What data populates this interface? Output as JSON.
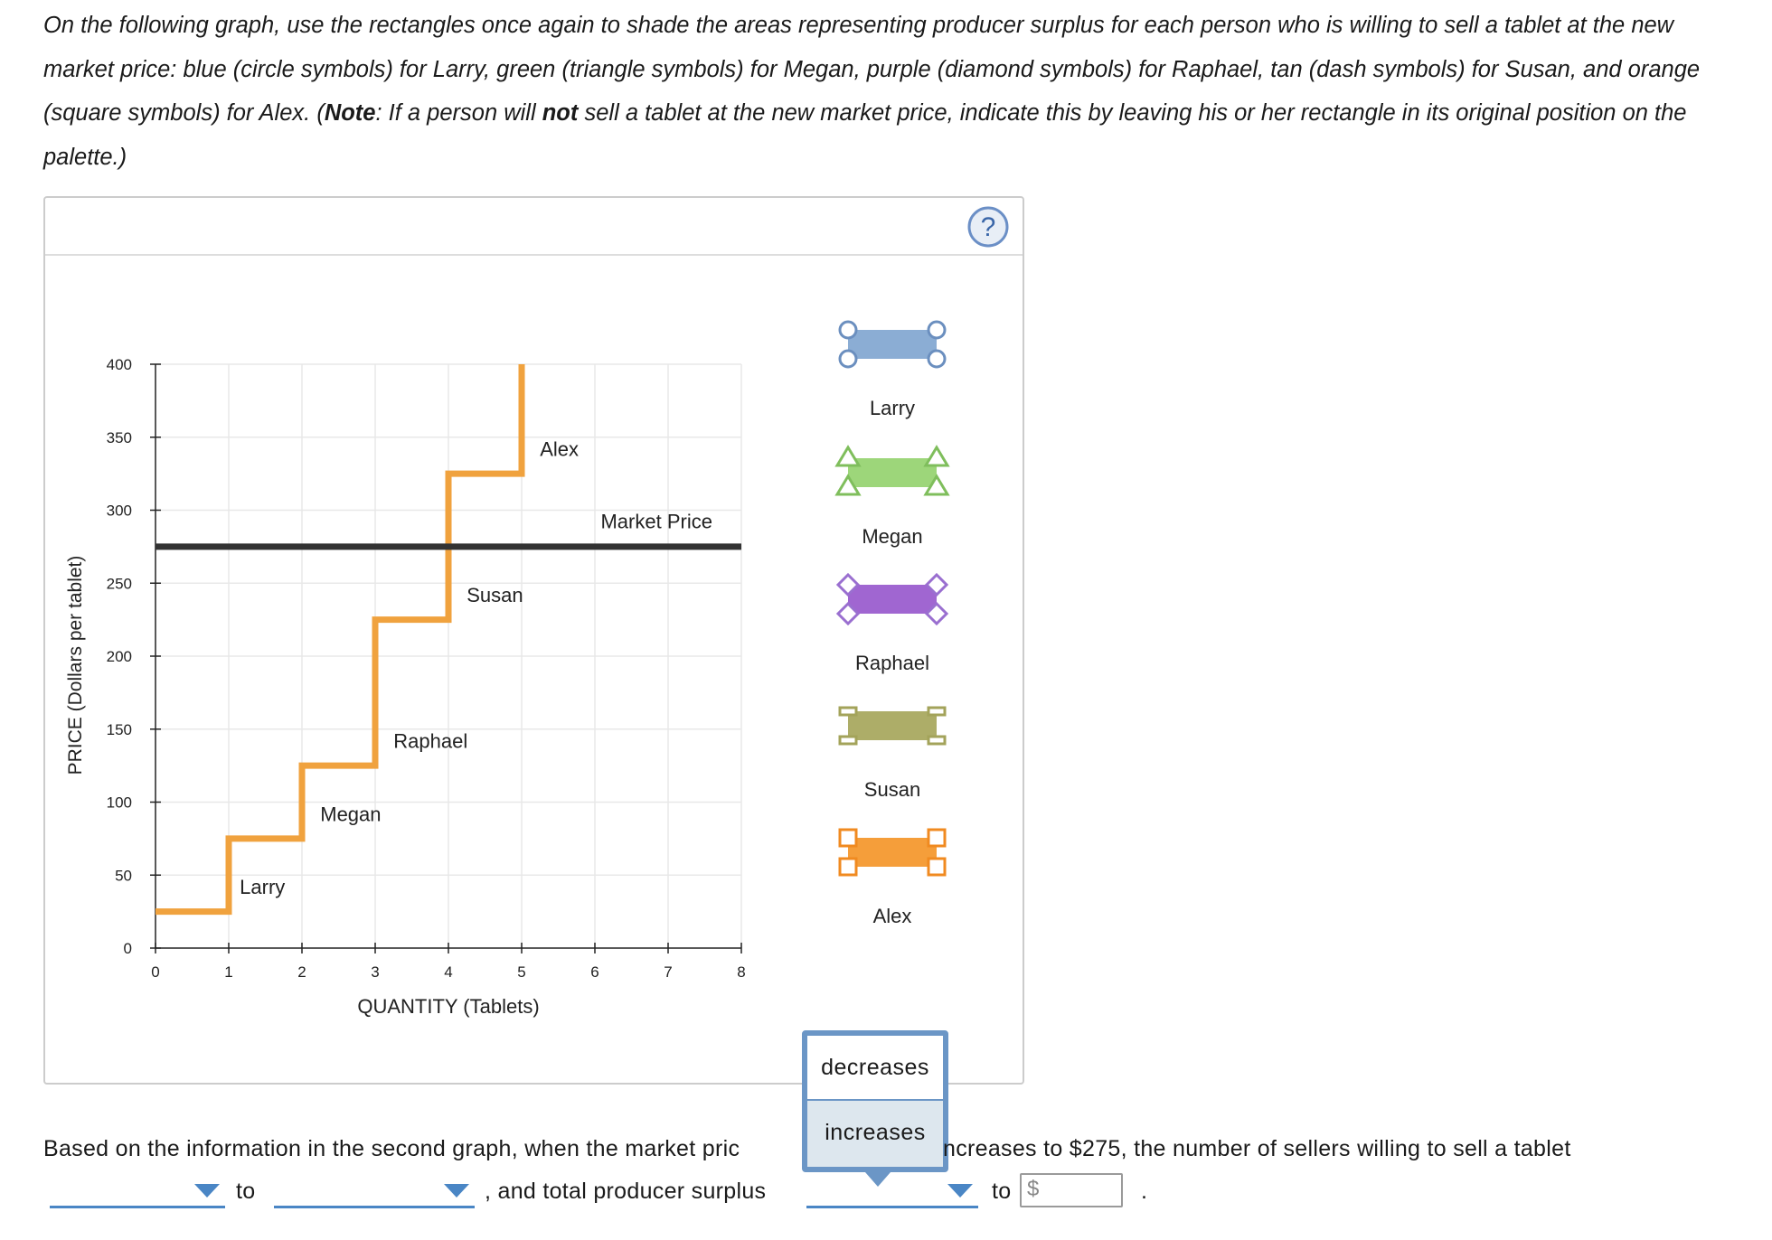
{
  "instructions": {
    "part1": "On the following graph, use the rectangles once again to shade the areas representing producer surplus for each person who is willing to sell a tablet at the new market price: blue (circle symbols) for Larry, green (triangle symbols) for Megan, purple (diamond symbols) for Raphael, tan (dash symbols) for Susan, and orange (square symbols) for Alex. (",
    "note_bold": "Note",
    "part2": ": If a person will ",
    "not_bold": "not",
    "part3": " sell a tablet at the new market price, indicate this by leaving his or her rectangle in its original position on the palette.)"
  },
  "help_label": "?",
  "chart_data": {
    "type": "line",
    "xlabel": "QUANTITY (Tablets)",
    "ylabel": "PRICE (Dollars per tablet)",
    "xlim": [
      0,
      8
    ],
    "ylim": [
      0,
      400
    ],
    "x_ticks": [
      "0",
      "1",
      "2",
      "3",
      "4",
      "5",
      "6",
      "7",
      "8"
    ],
    "y_ticks": [
      "0",
      "50",
      "100",
      "150",
      "200",
      "250",
      "300",
      "350",
      "400"
    ],
    "grid": true,
    "supply_curve": {
      "color": "#f0a23e",
      "steps": [
        {
          "x": [
            0,
            1
          ],
          "price": 25,
          "seller": "Larry"
        },
        {
          "x": [
            1,
            2
          ],
          "price": 75,
          "seller": "Megan"
        },
        {
          "x": [
            2,
            3
          ],
          "price": 125,
          "seller": "Raphael"
        },
        {
          "x": [
            3,
            4
          ],
          "price": 225,
          "seller": "Susan"
        },
        {
          "x": [
            4,
            5
          ],
          "price": 325,
          "seller": "Alex"
        },
        {
          "x": [
            5,
            5
          ],
          "price": 400,
          "seller": ""
        }
      ]
    },
    "step_labels": [
      {
        "text": "Larry",
        "x": 1.15,
        "y": 37
      },
      {
        "text": "Megan",
        "x": 2.25,
        "y": 87
      },
      {
        "text": "Raphael",
        "x": 3.25,
        "y": 137
      },
      {
        "text": "Susan",
        "x": 4.25,
        "y": 237
      },
      {
        "text": "Alex",
        "x": 5.25,
        "y": 337
      }
    ],
    "market_price": {
      "value": 275,
      "label": "Market Price",
      "label_x": 6.08,
      "label_y": 285,
      "color": "#333333"
    }
  },
  "palette": [
    {
      "name": "Larry",
      "color": "#8badd4",
      "border": "#6b8fbf",
      "symbol": "circle"
    },
    {
      "name": "Megan",
      "color": "#9dd67a",
      "border": "#7fbe5c",
      "symbol": "triangle"
    },
    {
      "name": "Raphael",
      "color": "#a066d1",
      "border": "#9a6fd0",
      "symbol": "diamond"
    },
    {
      "name": "Susan",
      "color": "#adad68",
      "border": "#a3a35a",
      "symbol": "dash"
    },
    {
      "name": "Alex",
      "color": "#f59e3a",
      "border": "#f08a20",
      "symbol": "square"
    }
  ],
  "dropdown": {
    "options": [
      "decreases",
      "increases"
    ],
    "highlighted": "increases"
  },
  "sentence": {
    "line1_start": "Based on the information in the second graph, when the market pric",
    "line1_end": "ncreases to $275, the number of sellers willing to sell a tablet",
    "to_1": "to",
    "and_total": ", and total producer surplus",
    "to_2": "to",
    "period": ".",
    "dollar_sign": "$",
    "input_value": ""
  }
}
